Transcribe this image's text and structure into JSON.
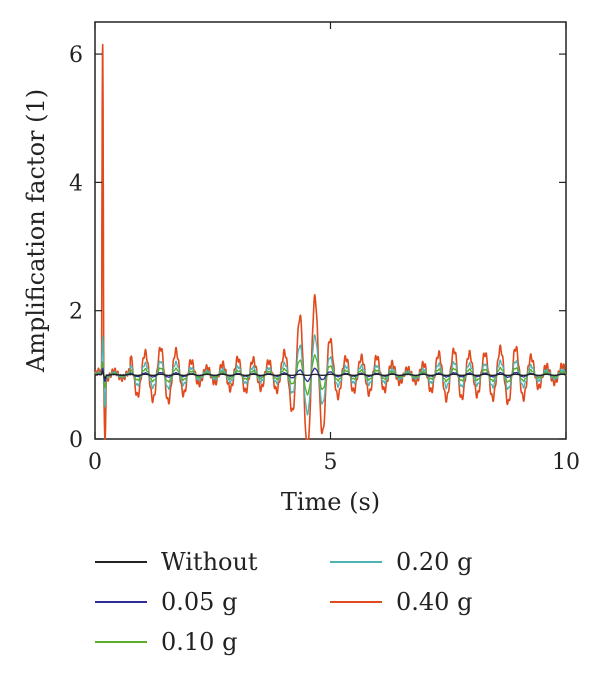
{
  "chart_data": {
    "type": "line",
    "title": "",
    "xlabel": "Time (s)",
    "ylabel": "Amplification factor (1)",
    "xlim": [
      0,
      10
    ],
    "ylim": [
      0,
      6.5
    ],
    "x_ticks": [
      0,
      5,
      10
    ],
    "y_ticks": [
      0,
      2,
      4,
      6
    ],
    "grid": false,
    "legend_position": "bottom",
    "baseline": 1.0,
    "series": [
      {
        "name": "Without",
        "color": "#222222",
        "initial_peak": 1.05,
        "initial_min": 0.95,
        "oscillation_amplitude": 0.0
      },
      {
        "name": "0.05 g",
        "color": "#2e2b9e",
        "initial_peak": 1.1,
        "initial_min": 0.9,
        "oscillation_amplitude": 0.05
      },
      {
        "name": "0.10 g",
        "color": "#5aab2e",
        "initial_peak": 1.2,
        "initial_min": 0.8,
        "oscillation_amplitude": 0.15
      },
      {
        "name": "0.20 g",
        "color": "#4db3b3",
        "initial_peak": 1.6,
        "initial_min": 0.5,
        "oscillation_amplitude": 0.3
      },
      {
        "name": "0.40 g",
        "color": "#e04a1c",
        "initial_peak": 6.15,
        "initial_min": 0.0,
        "oscillation_amplitude": 0.6,
        "max_later_peak": 2.05,
        "max_later_peak_time": 4.6,
        "min_later_trough": 0.25
      }
    ]
  },
  "legend": {
    "items": [
      {
        "label": "Without",
        "color": "#222222"
      },
      {
        "label": "0.05 g",
        "color": "#2e2b9e"
      },
      {
        "label": "0.10 g",
        "color": "#5aab2e"
      },
      {
        "label": "0.20 g",
        "color": "#4db3b3"
      },
      {
        "label": "0.40 g",
        "color": "#e04a1c"
      }
    ]
  }
}
